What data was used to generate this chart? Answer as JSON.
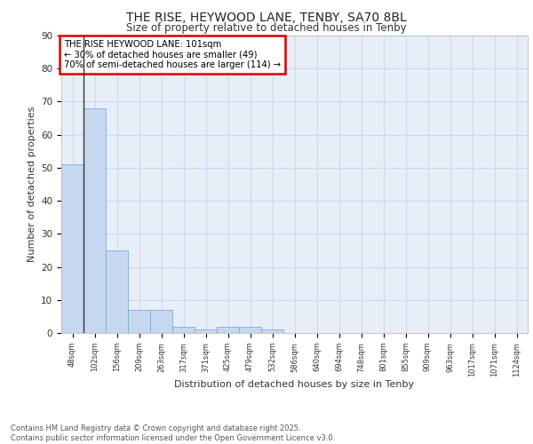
{
  "title_line1": "THE RISE, HEYWOOD LANE, TENBY, SA70 8BL",
  "title_line2": "Size of property relative to detached houses in Tenby",
  "xlabel": "Distribution of detached houses by size in Tenby",
  "ylabel": "Number of detached properties",
  "categories": [
    "48sqm",
    "102sqm",
    "156sqm",
    "209sqm",
    "263sqm",
    "317sqm",
    "371sqm",
    "425sqm",
    "479sqm",
    "532sqm",
    "586sqm",
    "640sqm",
    "694sqm",
    "748sqm",
    "801sqm",
    "855sqm",
    "909sqm",
    "963sqm",
    "1017sqm",
    "1071sqm",
    "1124sqm"
  ],
  "values": [
    51,
    68,
    25,
    7,
    7,
    2,
    1,
    2,
    2,
    1,
    0,
    0,
    0,
    0,
    0,
    0,
    0,
    0,
    0,
    0,
    0
  ],
  "bar_color": "#c5d8f0",
  "bar_edge_color": "#7aadd4",
  "vline_x": 0.5,
  "vline_color": "#333333",
  "annotation_text": "THE RISE HEYWOOD LANE: 101sqm\n← 30% of detached houses are smaller (49)\n70% of semi-detached houses are larger (114) →",
  "annotation_box_color": "#dd0000",
  "ylim": [
    0,
    90
  ],
  "yticks": [
    0,
    10,
    20,
    30,
    40,
    50,
    60,
    70,
    80,
    90
  ],
  "grid_color": "#ccd8ee",
  "background_color": "#e8eef8",
  "footer_text": "Contains HM Land Registry data © Crown copyright and database right 2025.\nContains public sector information licensed under the Open Government Licence v3.0."
}
